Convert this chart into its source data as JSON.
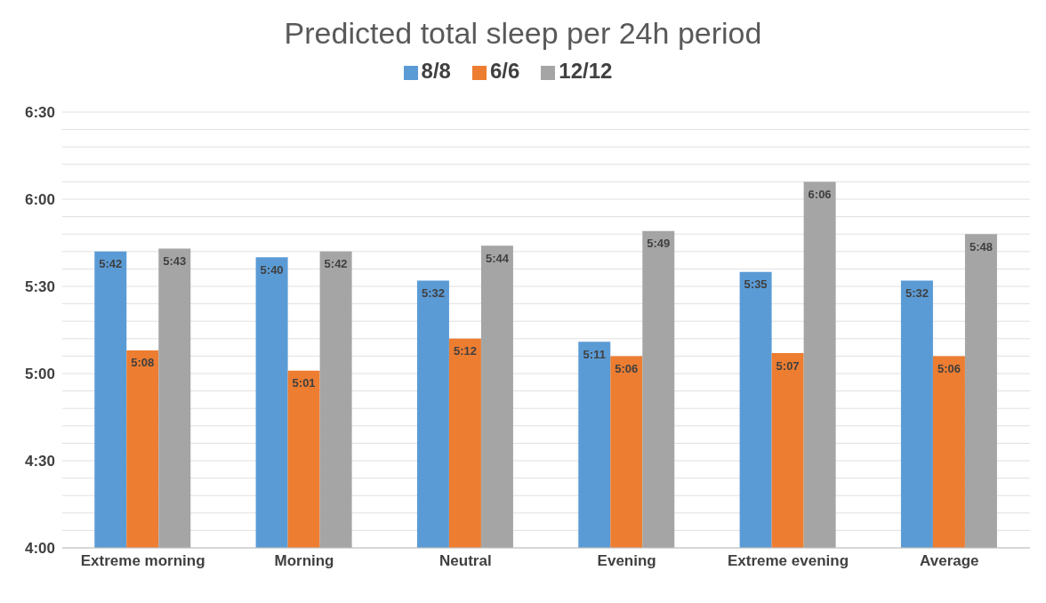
{
  "chart_data": {
    "type": "bar",
    "title": "Predicted total sleep per 24h period",
    "categories": [
      "Extreme morning",
      "Morning",
      "Neutral",
      "Evening",
      "Extreme evening",
      "Average"
    ],
    "series": [
      {
        "name": "8/8",
        "color": "#5b9bd5",
        "values": [
          5.7,
          5.667,
          5.533,
          5.183,
          5.583,
          5.533
        ],
        "value_labels": [
          "5:42",
          "5:40",
          "5:32",
          "5:11",
          "5:35",
          "5:32"
        ]
      },
      {
        "name": "6/6",
        "color": "#ed7d31",
        "values": [
          5.133,
          5.017,
          5.2,
          5.1,
          5.117,
          5.1
        ],
        "value_labels": [
          "5:08",
          "5:01",
          "5:12",
          "5:06",
          "5:07",
          "5:06"
        ]
      },
      {
        "name": "12/12",
        "color": "#a5a5a5",
        "values": [
          5.717,
          5.7,
          5.733,
          5.817,
          6.1,
          5.8
        ],
        "value_labels": [
          "5:43",
          "5:42",
          "5:44",
          "5:49",
          "6:06",
          "5:48"
        ]
      }
    ],
    "ylim": [
      4,
      6.5
    ],
    "yticks": [
      {
        "value": 4,
        "label": "4:00"
      },
      {
        "value": 4.1,
        "label": null
      },
      {
        "value": 4.2,
        "label": null
      },
      {
        "value": 4.3,
        "label": null
      },
      {
        "value": 4.4,
        "label": null
      },
      {
        "value": 4.5,
        "label": "4:30"
      },
      {
        "value": 4.6,
        "label": null
      },
      {
        "value": 4.7,
        "label": null
      },
      {
        "value": 4.8,
        "label": null
      },
      {
        "value": 4.9,
        "label": null
      },
      {
        "value": 5,
        "label": "5:00"
      },
      {
        "value": 5.1,
        "label": null
      },
      {
        "value": 5.2,
        "label": null
      },
      {
        "value": 5.3,
        "label": null
      },
      {
        "value": 5.4,
        "label": null
      },
      {
        "value": 5.5,
        "label": "5:30"
      },
      {
        "value": 5.6,
        "label": null
      },
      {
        "value": 5.7,
        "label": null
      },
      {
        "value": 5.8,
        "label": null
      },
      {
        "value": 5.9,
        "label": null
      },
      {
        "value": 6,
        "label": "6:00"
      },
      {
        "value": 6.1,
        "label": null
      },
      {
        "value": 6.2,
        "label": null
      },
      {
        "value": 6.3,
        "label": null
      },
      {
        "value": 6.4,
        "label": null
      },
      {
        "value": 6.5,
        "label": "6:30"
      }
    ],
    "grid": "y",
    "legend": "top"
  }
}
